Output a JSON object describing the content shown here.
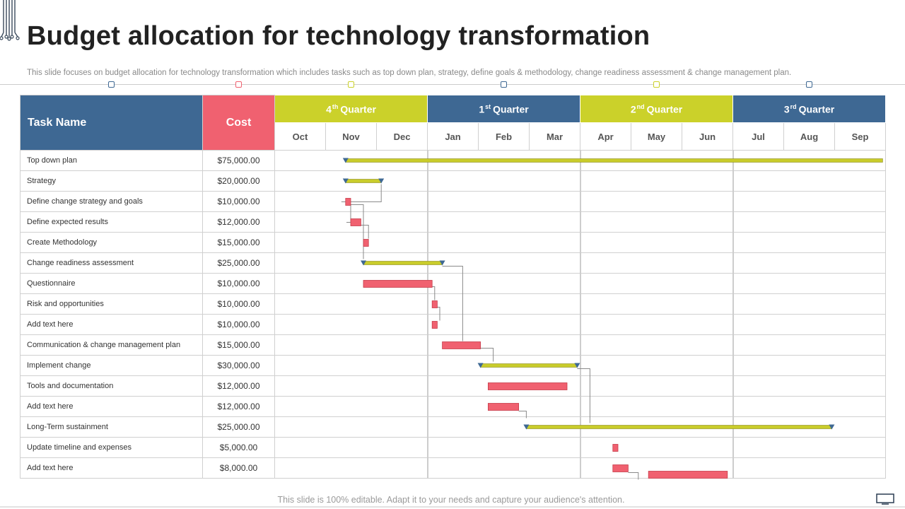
{
  "page": {
    "title": "Budget allocation for technology transformation",
    "subtitle": "This slide focuses on budget allocation for technology transformation which includes tasks such as top down plan, strategy, define goals & methodology, change readiness assessment & change management plan.",
    "footer": "This slide is 100% editable. Adapt it to your needs and capture your audience's attention."
  },
  "colors": {
    "header_blue": "#3e6893",
    "header_cost": "#f06170",
    "quarter_yellow": "#cbd12a",
    "summary_bar": "#c9cc2b",
    "task_bar": "#f06170",
    "milestone": "#3e6893",
    "connector": "#8a8a8a"
  },
  "markers": [
    {
      "color": "#3e6893"
    },
    {
      "color": "#f06170"
    },
    {
      "color": "#cbd12a"
    },
    {
      "color": "#3e6893"
    },
    {
      "color": "#cbd12a"
    },
    {
      "color": "#3e6893"
    }
  ],
  "table": {
    "task_header": "Task Name",
    "cost_header": "Cost",
    "quarters": [
      {
        "num": "4",
        "sup": "th",
        "name": "Quarter"
      },
      {
        "num": "1",
        "sup": "st",
        "name": "Quarter"
      },
      {
        "num": "2",
        "sup": "nd",
        "name": "Quarter"
      },
      {
        "num": "3",
        "sup": "rd",
        "name": "Quarter"
      }
    ],
    "months": [
      "Oct",
      "Nov",
      "Dec",
      "Jan",
      "Feb",
      "Mar",
      "Apr",
      "May",
      "Jun",
      "Jul",
      "Aug",
      "Sep"
    ],
    "rows": [
      {
        "task": "Top down plan",
        "cost": "$75,000.00"
      },
      {
        "task": "Strategy",
        "cost": "$20,000.00"
      },
      {
        "task": "Define change strategy and goals",
        "cost": "$10,000.00"
      },
      {
        "task": "Define expected results",
        "cost": "$12,000.00"
      },
      {
        "task": "Create Methodology",
        "cost": "$15,000.00"
      },
      {
        "task": "Change readiness assessment",
        "cost": "$25,000.00"
      },
      {
        "task": "Questionnaire",
        "cost": "$10,000.00"
      },
      {
        "task": "Risk and opportunities",
        "cost": "$10,000.00"
      },
      {
        "task": "Add text here",
        "cost": "$10,000.00"
      },
      {
        "task": "Communication  & change management plan",
        "cost": "$15,000.00"
      },
      {
        "task": "Implement  change",
        "cost": "$30,000.00"
      },
      {
        "task": "Tools and documentation",
        "cost": "$12,000.00"
      },
      {
        "task": "Add text here",
        "cost": "$12,000.00"
      },
      {
        "task": "Long-Term sustainment",
        "cost": "$25,000.00"
      },
      {
        "task": "Update timeline and expenses",
        "cost": "$5,000.00"
      },
      {
        "task": "Add text here",
        "cost": "$8,000.00"
      }
    ]
  },
  "chart_data": {
    "type": "gantt",
    "title": "Budget allocation for technology transformation",
    "time_unit": "months from start of Oct",
    "months": [
      "Oct",
      "Nov",
      "Dec",
      "Jan",
      "Feb",
      "Mar",
      "Apr",
      "May",
      "Jun",
      "Jul",
      "Aug",
      "Sep"
    ],
    "bars": [
      {
        "row": 0,
        "kind": "summary",
        "start": 1.4,
        "end": 11.95,
        "start_mark": true,
        "end_mark": false
      },
      {
        "row": 1,
        "kind": "summary",
        "start": 1.4,
        "end": 2.1,
        "start_mark": true,
        "end_mark": true
      },
      {
        "row": 2,
        "kind": "task",
        "start": 1.4,
        "end": 1.5
      },
      {
        "row": 3,
        "kind": "task",
        "start": 1.5,
        "end": 1.7
      },
      {
        "row": 4,
        "kind": "task",
        "start": 1.75,
        "end": 1.85
      },
      {
        "row": 5,
        "kind": "summary",
        "start": 1.75,
        "end": 3.3,
        "start_mark": true,
        "end_mark": true
      },
      {
        "row": 6,
        "kind": "task",
        "start": 1.75,
        "end": 3.1
      },
      {
        "row": 7,
        "kind": "task",
        "start": 3.1,
        "end": 3.2
      },
      {
        "row": 8,
        "kind": "task",
        "start": 3.1,
        "end": 3.2
      },
      {
        "row": 9,
        "kind": "task",
        "start": 3.3,
        "end": 4.05
      },
      {
        "row": 10,
        "kind": "summary",
        "start": 4.05,
        "end": 5.95,
        "start_mark": true,
        "end_mark": true
      },
      {
        "row": 11,
        "kind": "task",
        "start": 4.2,
        "end": 5.75
      },
      {
        "row": 12,
        "kind": "task",
        "start": 4.2,
        "end": 4.8
      },
      {
        "row": 13,
        "kind": "summary",
        "start": 4.95,
        "end": 10.95,
        "start_mark": true,
        "end_mark": true
      },
      {
        "row": 14,
        "kind": "task",
        "start": 6.65,
        "end": 6.75
      },
      {
        "row": 15,
        "kind": "task",
        "start": 6.65,
        "end": 6.95
      },
      {
        "row": 15,
        "kind": "task",
        "offset": "lower",
        "start": 7.35,
        "end": 8.9
      }
    ],
    "links": [
      {
        "from_row": 1,
        "from_x": 2.1,
        "to_row": 2,
        "to_x": 1.4
      },
      {
        "from_row": 2,
        "from_x": 1.5,
        "to_row": 3,
        "to_x": 1.5
      },
      {
        "from_row": 3,
        "from_x": 1.7,
        "to_row": 4,
        "to_x": 1.85
      },
      {
        "from_row": 2,
        "from_x": 1.45,
        "to_row": 5,
        "to_x": 1.75
      },
      {
        "from_row": 6,
        "from_x": 3.1,
        "to_row": 7,
        "to_x": 3.15
      },
      {
        "from_row": 7,
        "from_x": 3.2,
        "to_row": 8,
        "to_x": 3.25
      },
      {
        "from_row": 5,
        "from_x": 3.3,
        "to_row": 9,
        "to_x": 3.7
      },
      {
        "from_row": 9,
        "from_x": 4.05,
        "to_row": 10,
        "to_x": 4.3
      },
      {
        "from_row": 12,
        "from_x": 4.8,
        "to_row": 12,
        "to_x": 4.95
      },
      {
        "from_row": 10,
        "from_x": 5.95,
        "to_row": 13,
        "to_x": 6.2
      },
      {
        "from_row": 15,
        "from_x": 6.95,
        "to_row": 15,
        "to_x": 7.15
      }
    ]
  }
}
